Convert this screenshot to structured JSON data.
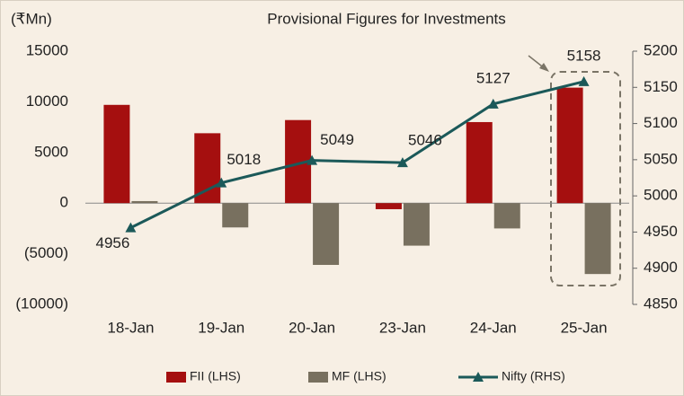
{
  "chart_data": {
    "type": "bar-line",
    "annotation": "Provisional Figures for Investments",
    "y_label": "(₹Mn)",
    "categories": [
      "18-Jan",
      "19-Jan",
      "20-Jan",
      "23-Jan",
      "24-Jan",
      "25-Jan"
    ],
    "series": [
      {
        "name": "FII (LHS)",
        "color": "#a50f0f",
        "values": [
          9700,
          6900,
          8200,
          -600,
          8000,
          11400
        ]
      },
      {
        "name": "MF (LHS)",
        "color": "#78705f",
        "values": [
          200,
          -2400,
          -6100,
          -4200,
          -2500,
          -7000
        ]
      },
      {
        "name": "Nifty (RHS)",
        "color": "#1b5959",
        "axis": "y2",
        "values": [
          4956,
          5018,
          5049,
          5046,
          5127,
          5158
        ]
      }
    ],
    "ylim": [
      -10000,
      15000
    ],
    "yticks": [
      {
        "value": -10000,
        "label": "(10000)"
      },
      {
        "value": -5000,
        "label": "(5000)"
      },
      0,
      5000,
      10000,
      15000
    ],
    "y2lim": [
      4850,
      5200
    ],
    "y2ticks": [
      4850,
      4900,
      4950,
      5000,
      5050,
      5100,
      5150,
      5200
    ]
  }
}
